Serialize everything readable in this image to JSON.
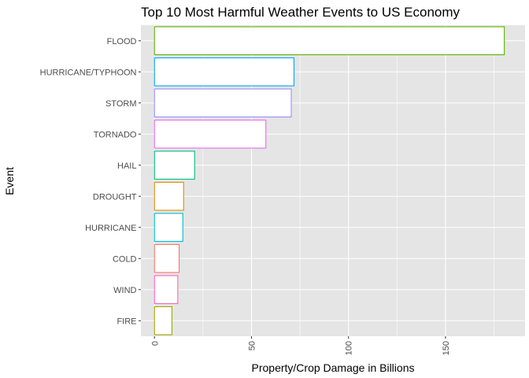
{
  "chart_data": {
    "type": "bar",
    "orientation": "horizontal",
    "title": "Top 10 Most Harmful Weather Events to US Economy",
    "xlabel": "Property/Crop Damage in Billions",
    "ylabel": "Event",
    "xlim": [
      -7,
      191
    ],
    "xticks": [
      0,
      50,
      100,
      150
    ],
    "xtick_labels": [
      "0",
      "50",
      "100",
      "150"
    ],
    "categories": [
      "FLOOD",
      "HURRICANE/TYPHOON",
      "STORM",
      "TORNADO",
      "HAIL",
      "DROUGHT",
      "HURRICANE",
      "COLD",
      "WIND",
      "FIRE"
    ],
    "values": [
      180.3,
      71.9,
      70.5,
      57.4,
      20.7,
      15.0,
      14.6,
      12.7,
      12.0,
      9.0
    ],
    "colors": [
      "#5BB300",
      "#00A5FF",
      "#9590FF",
      "#E76BF3",
      "#00BF7D",
      "#D89000",
      "#00BCD8",
      "#F8766D",
      "#FF62BC",
      "#A3A500"
    ],
    "fill": "#FFFFFF",
    "panel_background": "#E5E5E5",
    "grid_color": "#FFFFFF",
    "grid": true,
    "legend": "none"
  }
}
